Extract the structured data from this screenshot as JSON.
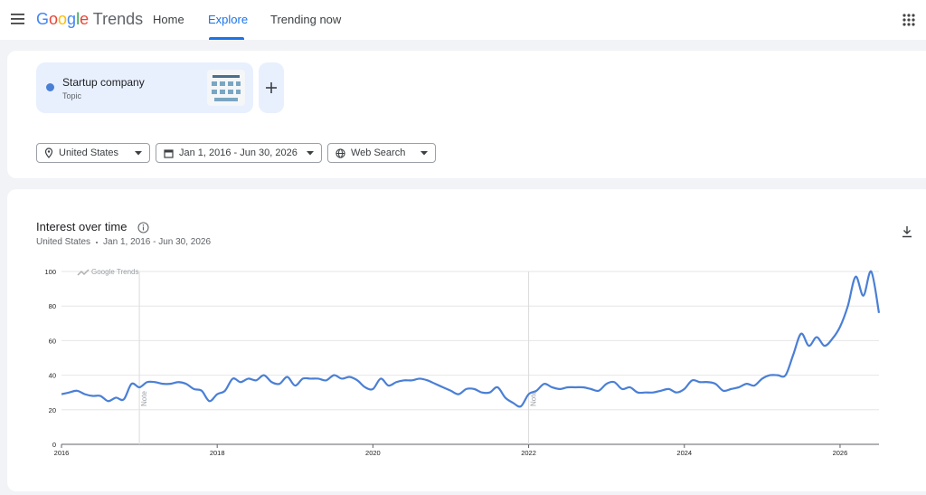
{
  "header": {
    "logo": "Google",
    "logo_colors": [
      "#4285f4",
      "#ea4335",
      "#fbbc05",
      "#4285f4",
      "#34a853",
      "#ea4335"
    ],
    "product": "Trends",
    "nav": [
      "Home",
      "Explore",
      "Trending now"
    ],
    "active_nav": 1
  },
  "search_term": {
    "name": "Startup company",
    "kind": "Topic"
  },
  "filters": [
    "United States",
    "Jan 1, 2016 - Jun 30, 2026",
    "Web Search"
  ],
  "interest": {
    "title": "Interest over time",
    "location": "United States",
    "date_range": "Jan 1, 2016 - Jun 30, 2026"
  },
  "chart_data": {
    "type": "line",
    "watermark": "Google Trends",
    "color": "#4a7fd6",
    "grid": true,
    "x": [
      2016.0,
      2016.1,
      2016.2,
      2016.3,
      2016.4,
      2016.5,
      2016.6,
      2016.7,
      2016.8,
      2016.9,
      2017.0,
      2017.1,
      2017.2,
      2017.3,
      2017.4,
      2017.5,
      2017.6,
      2017.7,
      2017.8,
      2017.9,
      2018.0,
      2018.1,
      2018.2,
      2018.3,
      2018.4,
      2018.5,
      2018.6,
      2018.7,
      2018.8,
      2018.9,
      2019.0,
      2019.1,
      2019.2,
      2019.3,
      2019.4,
      2019.5,
      2019.6,
      2019.7,
      2019.8,
      2019.9,
      2020.0,
      2020.1,
      2020.2,
      2020.3,
      2020.4,
      2020.5,
      2020.6,
      2020.7,
      2020.8,
      2020.9,
      2021.0,
      2021.1,
      2021.2,
      2021.3,
      2021.4,
      2021.5,
      2021.6,
      2021.7,
      2021.8,
      2021.9,
      2022.0,
      2022.1,
      2022.2,
      2022.3,
      2022.4,
      2022.5,
      2022.6,
      2022.7,
      2022.8,
      2022.9,
      2023.0,
      2023.1,
      2023.2,
      2023.3,
      2023.4,
      2023.5,
      2023.6,
      2023.7,
      2023.8,
      2023.9,
      2024.0,
      2024.1,
      2024.2,
      2024.3,
      2024.4,
      2024.5,
      2024.6,
      2024.7,
      2024.8,
      2024.9,
      2025.0,
      2025.1,
      2025.2,
      2025.3,
      2025.4,
      2025.5,
      2025.6,
      2025.7,
      2025.8,
      2025.9,
      2026.0,
      2026.1,
      2026.2,
      2026.3,
      2026.4,
      2026.5
    ],
    "values": [
      29,
      30,
      31,
      29,
      28,
      28,
      25,
      27,
      26,
      35,
      33,
      36,
      36,
      35,
      35,
      36,
      35,
      32,
      31,
      25,
      29,
      31,
      38,
      36,
      38,
      37,
      40,
      36,
      35,
      39,
      34,
      38,
      38,
      38,
      37,
      40,
      38,
      39,
      37,
      33,
      32,
      38,
      34,
      36,
      37,
      37,
      38,
      37,
      35,
      33,
      31,
      29,
      32,
      32,
      30,
      30,
      33,
      27,
      24,
      22,
      29,
      31,
      35,
      33,
      32,
      33,
      33,
      33,
      32,
      31,
      35,
      36,
      32,
      33,
      30,
      30,
      30,
      31,
      32,
      30,
      32,
      37,
      36,
      36,
      35,
      31,
      32,
      33,
      35,
      34,
      38,
      40,
      40,
      40,
      52,
      64,
      57,
      62,
      57,
      61,
      68,
      80,
      97,
      86,
      100,
      76
    ],
    "xlim": [
      2016,
      2026.5
    ],
    "xticks": [
      2016,
      2018,
      2020,
      2022,
      2024,
      2026
    ],
    "ylim": [
      0,
      100
    ],
    "yticks": [
      0,
      20,
      40,
      60,
      80,
      100
    ],
    "notes": [
      {
        "x": 2017,
        "text": "Note"
      },
      {
        "x": 2022,
        "text": "Note"
      }
    ]
  }
}
